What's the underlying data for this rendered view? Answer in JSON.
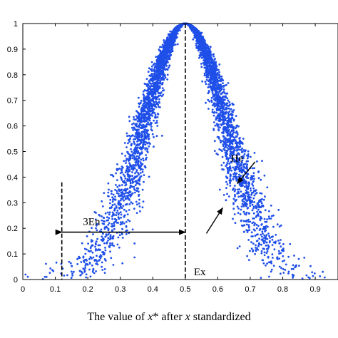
{
  "chart_data": {
    "type": "scatter",
    "xlabel_parts": {
      "pre": "The value of ",
      "var1": "x",
      "mid": "* after ",
      "var2": "x",
      "post": " standardized"
    },
    "ylabel": "",
    "xlim": [
      0,
      0.97
    ],
    "ylim": [
      0,
      1
    ],
    "x_ticks": [
      "0",
      "0.1",
      "0.2",
      "0.3",
      "0.4",
      "0.5",
      "0.6",
      "0.7",
      "0.8",
      "0.9"
    ],
    "y_ticks": [
      "0",
      "0.1",
      "0.2",
      "0.3",
      "0.4",
      "0.5",
      "0.6",
      "0.7",
      "0.8",
      "0.9",
      "1"
    ],
    "grid": false,
    "series": [
      {
        "color": "#1f4fe8",
        "model": "normal cloud",
        "params": {
          "Ex": 0.5,
          "En": 0.1267,
          "He": 0.018
        },
        "point_count": 5500
      }
    ],
    "annotations": {
      "en_label": "3En",
      "ex_label": "Ex",
      "he_label": "He",
      "en_arrow": {
        "x_from": 0.12,
        "x_to": 0.5,
        "y": 0.185
      },
      "en_dashed_x": 0.12,
      "en_dashed_top": 0.38,
      "ex_dashed_x": 0.5,
      "he_arrow_upper": {
        "from": [
          0.715,
          0.46
        ],
        "to": [
          0.66,
          0.375
        ]
      },
      "he_arrow_lower": {
        "from": [
          0.565,
          0.18
        ],
        "to": [
          0.615,
          0.28
        ]
      },
      "he_text_pos": [
        0.71,
        0.45
      ]
    }
  }
}
